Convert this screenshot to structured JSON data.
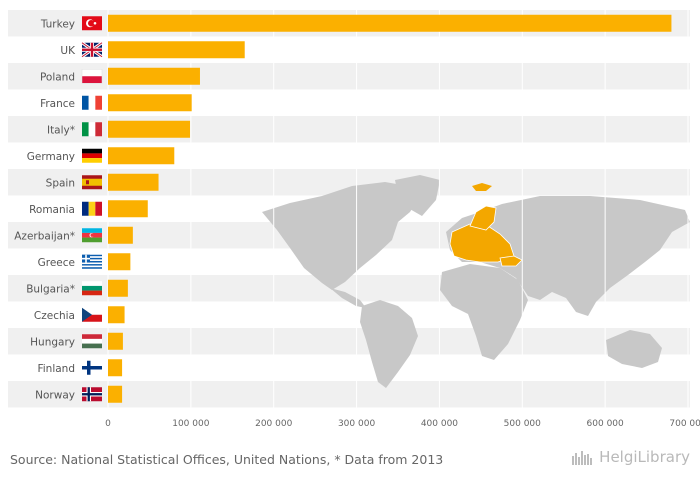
{
  "chart_data": {
    "type": "bar",
    "orientation": "horizontal",
    "categories": [
      "Turkey",
      "UK",
      "Poland",
      "France",
      "Italy*",
      "Germany",
      "Spain",
      "Romania",
      "Azerbaijan*",
      "Greece",
      "Bulgaria*",
      "Czechia",
      "Hungary",
      "Finland",
      "Norway"
    ],
    "values": [
      680000,
      165000,
      111000,
      101000,
      99000,
      80000,
      61000,
      48000,
      30000,
      27000,
      24000,
      20000,
      18000,
      17000,
      17000
    ],
    "xlim": [
      0,
      700000
    ],
    "xticks": [
      0,
      100000,
      200000,
      300000,
      400000,
      500000,
      600000,
      700000
    ],
    "xtick_labels": [
      "0",
      "100 000",
      "200 000",
      "300 000",
      "400 000",
      "500 000",
      "600 000",
      "700 000"
    ],
    "bar_color": "#fbb000",
    "band_colors": [
      "#f0f0f0",
      "#ffffff"
    ],
    "grid": true,
    "legend": "none",
    "flag_icons": [
      "turkey-flag-icon",
      "uk-flag-icon",
      "poland-flag-icon",
      "france-flag-icon",
      "italy-flag-icon",
      "germany-flag-icon",
      "spain-flag-icon",
      "romania-flag-icon",
      "azerbaijan-flag-icon",
      "greece-flag-icon",
      "bulgaria-flag-icon",
      "czechia-flag-icon",
      "hungary-flag-icon",
      "finland-flag-icon",
      "norway-flag-icon"
    ],
    "background_map": "world-map-europe-highlighted",
    "map_colors": {
      "land": "#c8c8c8",
      "highlight": "#f3a700"
    }
  },
  "footer": {
    "source": "Source: National Statistical Offices, United Nations, * Data from 2013",
    "brand": "HelgiLibrary",
    "brand_icon": "helgilibrary-logo-icon"
  }
}
